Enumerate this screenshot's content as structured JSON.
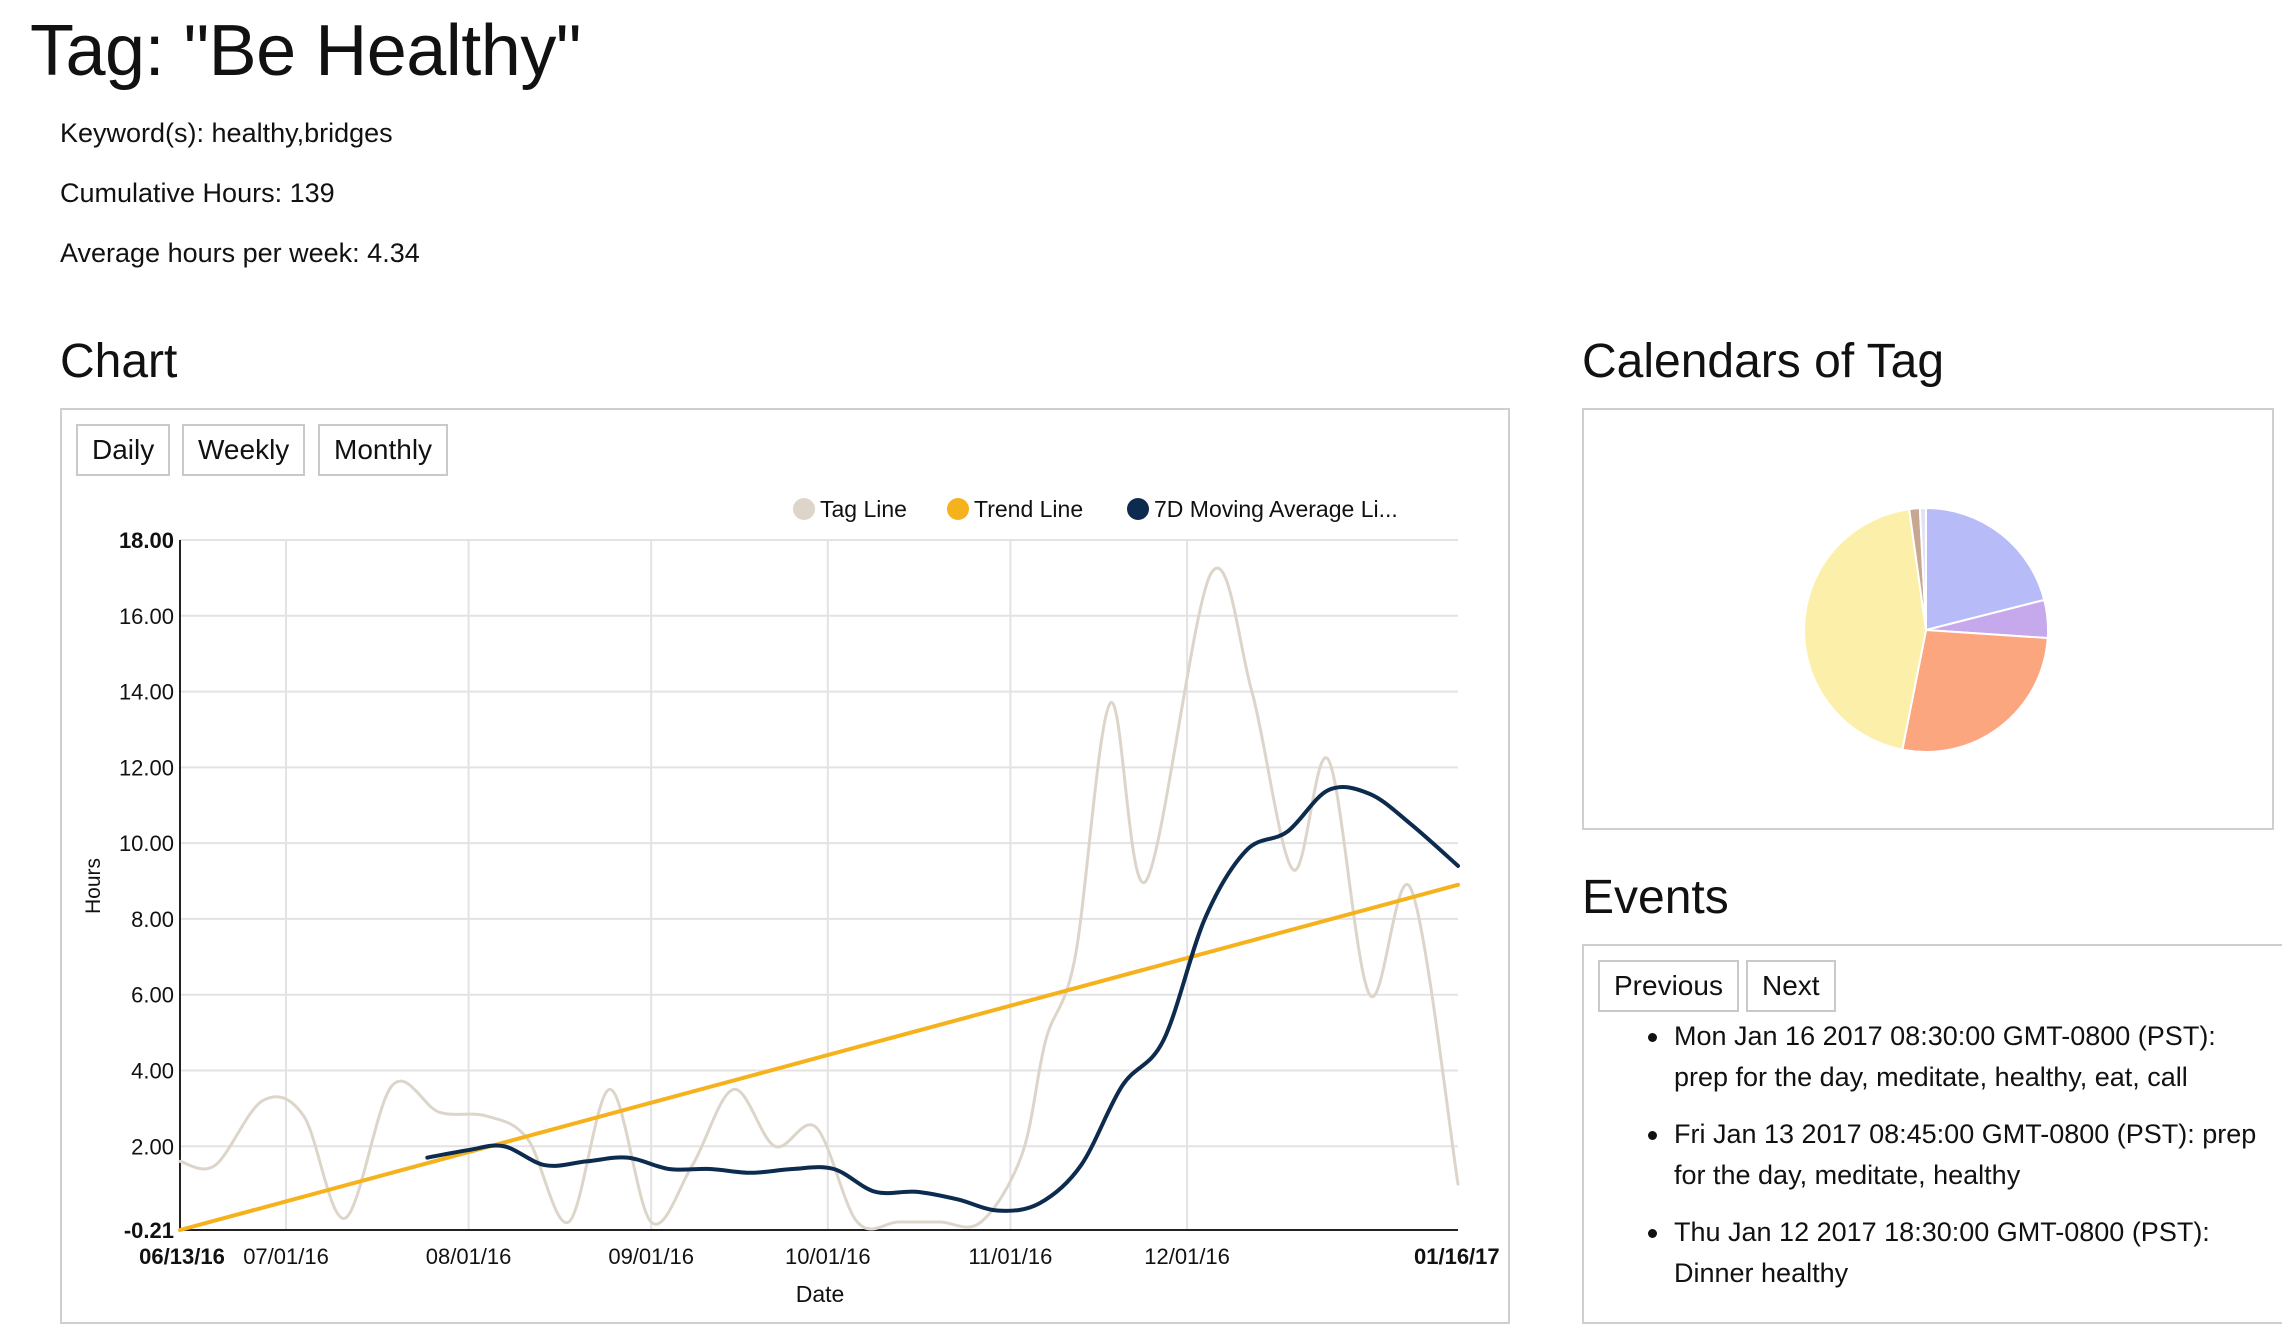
{
  "page": {
    "title": "Tag: \"Be Healthy\"",
    "keywords": "Keyword(s): healthy,bridges",
    "cumulative": "Cumulative Hours: 139",
    "average": "Average hours per week: 4.34"
  },
  "chart_section": {
    "heading": "Chart",
    "buttons": [
      "Daily",
      "Weekly",
      "Monthly"
    ]
  },
  "calendars_section": {
    "heading": "Calendars of Tag"
  },
  "events_section": {
    "heading": "Events",
    "previous_label": "Previous",
    "next_label": "Next",
    "items": [
      "Mon Jan 16 2017 08:30:00 GMT-0800 (PST): prep for the day, meditate, healthy, eat, call",
      "Fri Jan 13 2017 08:45:00 GMT-0800 (PST): prep for the day, meditate, healthy",
      "Thu Jan 12 2017 18:30:00 GMT-0800 (PST): Dinner healthy"
    ]
  },
  "chart_data": [
    {
      "type": "line",
      "xlabel": "Date",
      "ylabel": "Hours",
      "ylim": [
        -0.21,
        18.0
      ],
      "xlim": [
        "2016-06-13",
        "2017-01-16"
      ],
      "grid": true,
      "legend_position": "top-right",
      "y_ticks": [
        "18.00",
        "16.00",
        "14.00",
        "12.00",
        "10.00",
        "8.00",
        "6.00",
        "4.00",
        "2.00",
        "-0.21"
      ],
      "x_ticks": [
        {
          "label": "06/13/16",
          "date": "2016-06-13",
          "bold": true
        },
        {
          "label": "07/01/16",
          "date": "2016-07-01",
          "bold": false
        },
        {
          "label": "08/01/16",
          "date": "2016-08-01",
          "bold": false
        },
        {
          "label": "09/01/16",
          "date": "2016-09-01",
          "bold": false
        },
        {
          "label": "10/01/16",
          "date": "2016-10-01",
          "bold": false
        },
        {
          "label": "11/01/16",
          "date": "2016-11-01",
          "bold": false
        },
        {
          "label": "12/01/16",
          "date": "2016-12-01",
          "bold": false
        },
        {
          "label": "01/16/17",
          "date": "2017-01-16",
          "bold": true
        }
      ],
      "series": [
        {
          "name": "Tag Line",
          "color": "#ddd5ca",
          "points": [
            [
              "2016-06-13",
              1.6
            ],
            [
              "2016-06-19",
              1.5
            ],
            [
              "2016-06-27",
              3.2
            ],
            [
              "2016-07-04",
              2.8
            ],
            [
              "2016-07-11",
              0.1
            ],
            [
              "2016-07-19",
              3.6
            ],
            [
              "2016-07-27",
              2.9
            ],
            [
              "2016-08-04",
              2.8
            ],
            [
              "2016-08-11",
              2.2
            ],
            [
              "2016-08-18",
              0.0
            ],
            [
              "2016-08-25",
              3.5
            ],
            [
              "2016-09-01",
              0.0
            ],
            [
              "2016-09-08",
              1.5
            ],
            [
              "2016-09-15",
              3.5
            ],
            [
              "2016-09-22",
              2.0
            ],
            [
              "2016-09-29",
              2.5
            ],
            [
              "2016-10-06",
              0.0
            ],
            [
              "2016-10-13",
              0.0
            ],
            [
              "2016-10-20",
              0.0
            ],
            [
              "2016-10-27",
              0.0
            ],
            [
              "2016-11-03",
              1.8
            ],
            [
              "2016-11-07",
              4.8
            ],
            [
              "2016-11-12",
              7.0
            ],
            [
              "2016-11-18",
              13.7
            ],
            [
              "2016-11-24",
              9.0
            ],
            [
              "2016-12-05",
              17.1
            ],
            [
              "2016-12-12",
              14.0
            ],
            [
              "2016-12-19",
              9.3
            ],
            [
              "2016-12-25",
              12.2
            ],
            [
              "2017-01-01",
              6.0
            ],
            [
              "2017-01-08",
              8.8
            ],
            [
              "2017-01-16",
              1.0
            ]
          ]
        },
        {
          "name": "Trend Line",
          "color": "#f5b21c",
          "points": [
            [
              "2016-06-13",
              -0.21
            ],
            [
              "2017-01-16",
              8.9
            ]
          ]
        },
        {
          "name": "7D Moving Average Li...",
          "color": "#0d2b4e",
          "points": [
            [
              "2016-07-25",
              1.7
            ],
            [
              "2016-08-01",
              1.9
            ],
            [
              "2016-08-07",
              2.0
            ],
            [
              "2016-08-14",
              1.5
            ],
            [
              "2016-08-21",
              1.6
            ],
            [
              "2016-08-28",
              1.7
            ],
            [
              "2016-09-04",
              1.4
            ],
            [
              "2016-09-11",
              1.4
            ],
            [
              "2016-09-18",
              1.3
            ],
            [
              "2016-09-25",
              1.4
            ],
            [
              "2016-10-02",
              1.4
            ],
            [
              "2016-10-09",
              0.8
            ],
            [
              "2016-10-16",
              0.8
            ],
            [
              "2016-10-23",
              0.6
            ],
            [
              "2016-10-30",
              0.3
            ],
            [
              "2016-11-06",
              0.5
            ],
            [
              "2016-11-13",
              1.5
            ],
            [
              "2016-11-20",
              3.6
            ],
            [
              "2016-11-27",
              4.8
            ],
            [
              "2016-12-04",
              8.0
            ],
            [
              "2016-12-11",
              9.8
            ],
            [
              "2016-12-18",
              10.3
            ],
            [
              "2016-12-25",
              11.4
            ],
            [
              "2017-01-01",
              11.3
            ],
            [
              "2017-01-08",
              10.5
            ],
            [
              "2017-01-16",
              9.4
            ]
          ]
        }
      ]
    },
    {
      "type": "pie",
      "slices": [
        {
          "value": 21.0,
          "color": "#b7bbf7"
        },
        {
          "value": 5.0,
          "color": "#c6a8ec"
        },
        {
          "value": 27.0,
          "color": "#fca680"
        },
        {
          "value": 44.6,
          "color": "#fbefaa"
        },
        {
          "value": 1.4,
          "color": "#c8a792"
        },
        {
          "value": 0.8,
          "color": "#e2e2f5"
        }
      ]
    }
  ]
}
